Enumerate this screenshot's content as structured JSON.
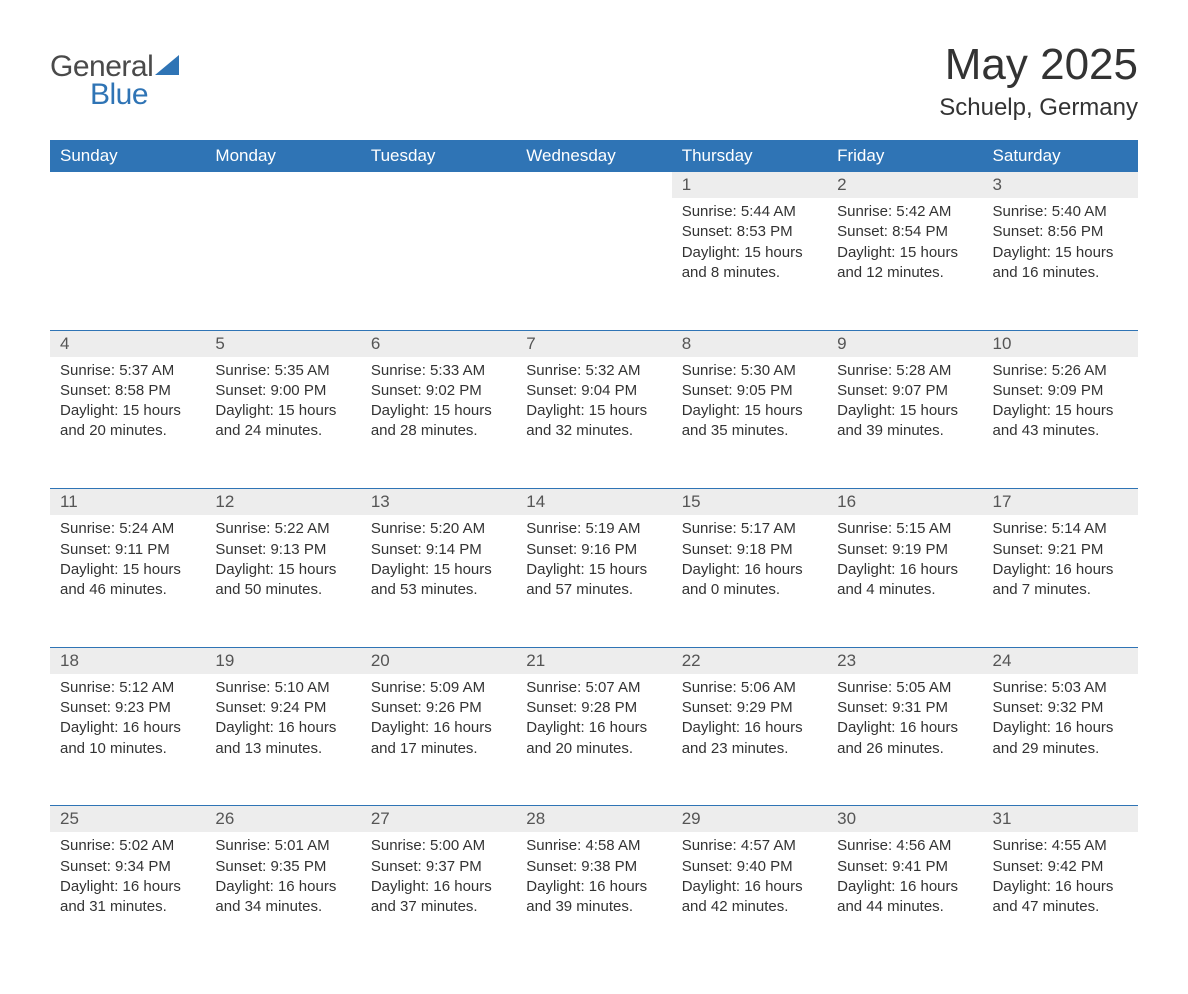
{
  "logo": {
    "text_general": "General",
    "text_blue": "Blue",
    "sail_color": "#2f74b5",
    "general_color": "#4a4a4a",
    "blue_color": "#2f74b5"
  },
  "title": "May 2025",
  "location": "Schuelp, Germany",
  "colors": {
    "header_bg": "#2f74b5",
    "header_text": "#ffffff",
    "daynum_bg": "#ededed",
    "daynum_text": "#555555",
    "body_text": "#333333",
    "page_bg": "#ffffff",
    "week_rule": "#2f74b5"
  },
  "font": {
    "family": "Arial",
    "body_size_pt": 11,
    "title_size_pt": 33,
    "location_size_pt": 18
  },
  "day_headers": [
    "Sunday",
    "Monday",
    "Tuesday",
    "Wednesday",
    "Thursday",
    "Friday",
    "Saturday"
  ],
  "weeks": [
    [
      null,
      null,
      null,
      null,
      {
        "n": "1",
        "sunrise": "Sunrise: 5:44 AM",
        "sunset": "Sunset: 8:53 PM",
        "dayl1": "Daylight: 15 hours",
        "dayl2": "and 8 minutes."
      },
      {
        "n": "2",
        "sunrise": "Sunrise: 5:42 AM",
        "sunset": "Sunset: 8:54 PM",
        "dayl1": "Daylight: 15 hours",
        "dayl2": "and 12 minutes."
      },
      {
        "n": "3",
        "sunrise": "Sunrise: 5:40 AM",
        "sunset": "Sunset: 8:56 PM",
        "dayl1": "Daylight: 15 hours",
        "dayl2": "and 16 minutes."
      }
    ],
    [
      {
        "n": "4",
        "sunrise": "Sunrise: 5:37 AM",
        "sunset": "Sunset: 8:58 PM",
        "dayl1": "Daylight: 15 hours",
        "dayl2": "and 20 minutes."
      },
      {
        "n": "5",
        "sunrise": "Sunrise: 5:35 AM",
        "sunset": "Sunset: 9:00 PM",
        "dayl1": "Daylight: 15 hours",
        "dayl2": "and 24 minutes."
      },
      {
        "n": "6",
        "sunrise": "Sunrise: 5:33 AM",
        "sunset": "Sunset: 9:02 PM",
        "dayl1": "Daylight: 15 hours",
        "dayl2": "and 28 minutes."
      },
      {
        "n": "7",
        "sunrise": "Sunrise: 5:32 AM",
        "sunset": "Sunset: 9:04 PM",
        "dayl1": "Daylight: 15 hours",
        "dayl2": "and 32 minutes."
      },
      {
        "n": "8",
        "sunrise": "Sunrise: 5:30 AM",
        "sunset": "Sunset: 9:05 PM",
        "dayl1": "Daylight: 15 hours",
        "dayl2": "and 35 minutes."
      },
      {
        "n": "9",
        "sunrise": "Sunrise: 5:28 AM",
        "sunset": "Sunset: 9:07 PM",
        "dayl1": "Daylight: 15 hours",
        "dayl2": "and 39 minutes."
      },
      {
        "n": "10",
        "sunrise": "Sunrise: 5:26 AM",
        "sunset": "Sunset: 9:09 PM",
        "dayl1": "Daylight: 15 hours",
        "dayl2": "and 43 minutes."
      }
    ],
    [
      {
        "n": "11",
        "sunrise": "Sunrise: 5:24 AM",
        "sunset": "Sunset: 9:11 PM",
        "dayl1": "Daylight: 15 hours",
        "dayl2": "and 46 minutes."
      },
      {
        "n": "12",
        "sunrise": "Sunrise: 5:22 AM",
        "sunset": "Sunset: 9:13 PM",
        "dayl1": "Daylight: 15 hours",
        "dayl2": "and 50 minutes."
      },
      {
        "n": "13",
        "sunrise": "Sunrise: 5:20 AM",
        "sunset": "Sunset: 9:14 PM",
        "dayl1": "Daylight: 15 hours",
        "dayl2": "and 53 minutes."
      },
      {
        "n": "14",
        "sunrise": "Sunrise: 5:19 AM",
        "sunset": "Sunset: 9:16 PM",
        "dayl1": "Daylight: 15 hours",
        "dayl2": "and 57 minutes."
      },
      {
        "n": "15",
        "sunrise": "Sunrise: 5:17 AM",
        "sunset": "Sunset: 9:18 PM",
        "dayl1": "Daylight: 16 hours",
        "dayl2": "and 0 minutes."
      },
      {
        "n": "16",
        "sunrise": "Sunrise: 5:15 AM",
        "sunset": "Sunset: 9:19 PM",
        "dayl1": "Daylight: 16 hours",
        "dayl2": "and 4 minutes."
      },
      {
        "n": "17",
        "sunrise": "Sunrise: 5:14 AM",
        "sunset": "Sunset: 9:21 PM",
        "dayl1": "Daylight: 16 hours",
        "dayl2": "and 7 minutes."
      }
    ],
    [
      {
        "n": "18",
        "sunrise": "Sunrise: 5:12 AM",
        "sunset": "Sunset: 9:23 PM",
        "dayl1": "Daylight: 16 hours",
        "dayl2": "and 10 minutes."
      },
      {
        "n": "19",
        "sunrise": "Sunrise: 5:10 AM",
        "sunset": "Sunset: 9:24 PM",
        "dayl1": "Daylight: 16 hours",
        "dayl2": "and 13 minutes."
      },
      {
        "n": "20",
        "sunrise": "Sunrise: 5:09 AM",
        "sunset": "Sunset: 9:26 PM",
        "dayl1": "Daylight: 16 hours",
        "dayl2": "and 17 minutes."
      },
      {
        "n": "21",
        "sunrise": "Sunrise: 5:07 AM",
        "sunset": "Sunset: 9:28 PM",
        "dayl1": "Daylight: 16 hours",
        "dayl2": "and 20 minutes."
      },
      {
        "n": "22",
        "sunrise": "Sunrise: 5:06 AM",
        "sunset": "Sunset: 9:29 PM",
        "dayl1": "Daylight: 16 hours",
        "dayl2": "and 23 minutes."
      },
      {
        "n": "23",
        "sunrise": "Sunrise: 5:05 AM",
        "sunset": "Sunset: 9:31 PM",
        "dayl1": "Daylight: 16 hours",
        "dayl2": "and 26 minutes."
      },
      {
        "n": "24",
        "sunrise": "Sunrise: 5:03 AM",
        "sunset": "Sunset: 9:32 PM",
        "dayl1": "Daylight: 16 hours",
        "dayl2": "and 29 minutes."
      }
    ],
    [
      {
        "n": "25",
        "sunrise": "Sunrise: 5:02 AM",
        "sunset": "Sunset: 9:34 PM",
        "dayl1": "Daylight: 16 hours",
        "dayl2": "and 31 minutes."
      },
      {
        "n": "26",
        "sunrise": "Sunrise: 5:01 AM",
        "sunset": "Sunset: 9:35 PM",
        "dayl1": "Daylight: 16 hours",
        "dayl2": "and 34 minutes."
      },
      {
        "n": "27",
        "sunrise": "Sunrise: 5:00 AM",
        "sunset": "Sunset: 9:37 PM",
        "dayl1": "Daylight: 16 hours",
        "dayl2": "and 37 minutes."
      },
      {
        "n": "28",
        "sunrise": "Sunrise: 4:58 AM",
        "sunset": "Sunset: 9:38 PM",
        "dayl1": "Daylight: 16 hours",
        "dayl2": "and 39 minutes."
      },
      {
        "n": "29",
        "sunrise": "Sunrise: 4:57 AM",
        "sunset": "Sunset: 9:40 PM",
        "dayl1": "Daylight: 16 hours",
        "dayl2": "and 42 minutes."
      },
      {
        "n": "30",
        "sunrise": "Sunrise: 4:56 AM",
        "sunset": "Sunset: 9:41 PM",
        "dayl1": "Daylight: 16 hours",
        "dayl2": "and 44 minutes."
      },
      {
        "n": "31",
        "sunrise": "Sunrise: 4:55 AM",
        "sunset": "Sunset: 9:42 PM",
        "dayl1": "Daylight: 16 hours",
        "dayl2": "and 47 minutes."
      }
    ]
  ]
}
